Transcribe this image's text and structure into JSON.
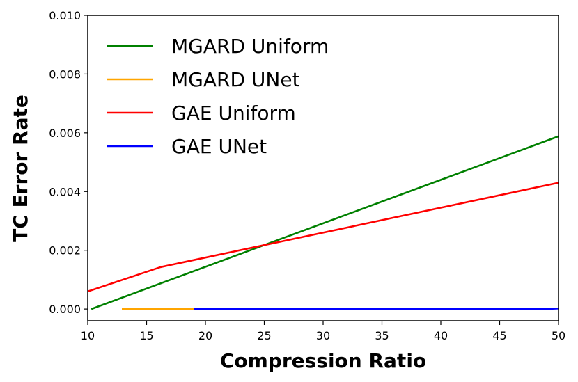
{
  "chart_data": {
    "type": "line",
    "title": "",
    "xlabel": "Compression Ratio",
    "ylabel": "TC Error Rate",
    "xlim": [
      10,
      50
    ],
    "ylim": [
      -0.0004,
      0.01
    ],
    "xticks": [
      10,
      15,
      20,
      25,
      30,
      35,
      40,
      45,
      50
    ],
    "xtick_labels": [
      "10",
      "15",
      "20",
      "25",
      "30",
      "35",
      "40",
      "45",
      "50"
    ],
    "yticks": [
      0.0,
      0.002,
      0.004,
      0.006,
      0.008,
      0.01
    ],
    "ytick_labels": [
      "0.000",
      "0.002",
      "0.004",
      "0.006",
      "0.008",
      "0.010"
    ],
    "grid": false,
    "legend_position": "upper-left",
    "series": [
      {
        "name": "MGARD Uniform",
        "color": "#008000",
        "x": [
          10.3,
          50
        ],
        "y": [
          0.0,
          0.00588
        ]
      },
      {
        "name": "MGARD UNet",
        "color": "#FFA500",
        "x": [
          12.9,
          19.0
        ],
        "y": [
          0.0,
          0.0
        ]
      },
      {
        "name": "GAE Uniform",
        "color": "#FF0000",
        "x": [
          10,
          16.2,
          50
        ],
        "y": [
          0.0006,
          0.00143,
          0.0043
        ]
      },
      {
        "name": "GAE UNet",
        "color": "#0000FF",
        "x": [
          19.0,
          49.0,
          50
        ],
        "y": [
          0.0,
          0.0,
          2e-05
        ]
      }
    ]
  }
}
